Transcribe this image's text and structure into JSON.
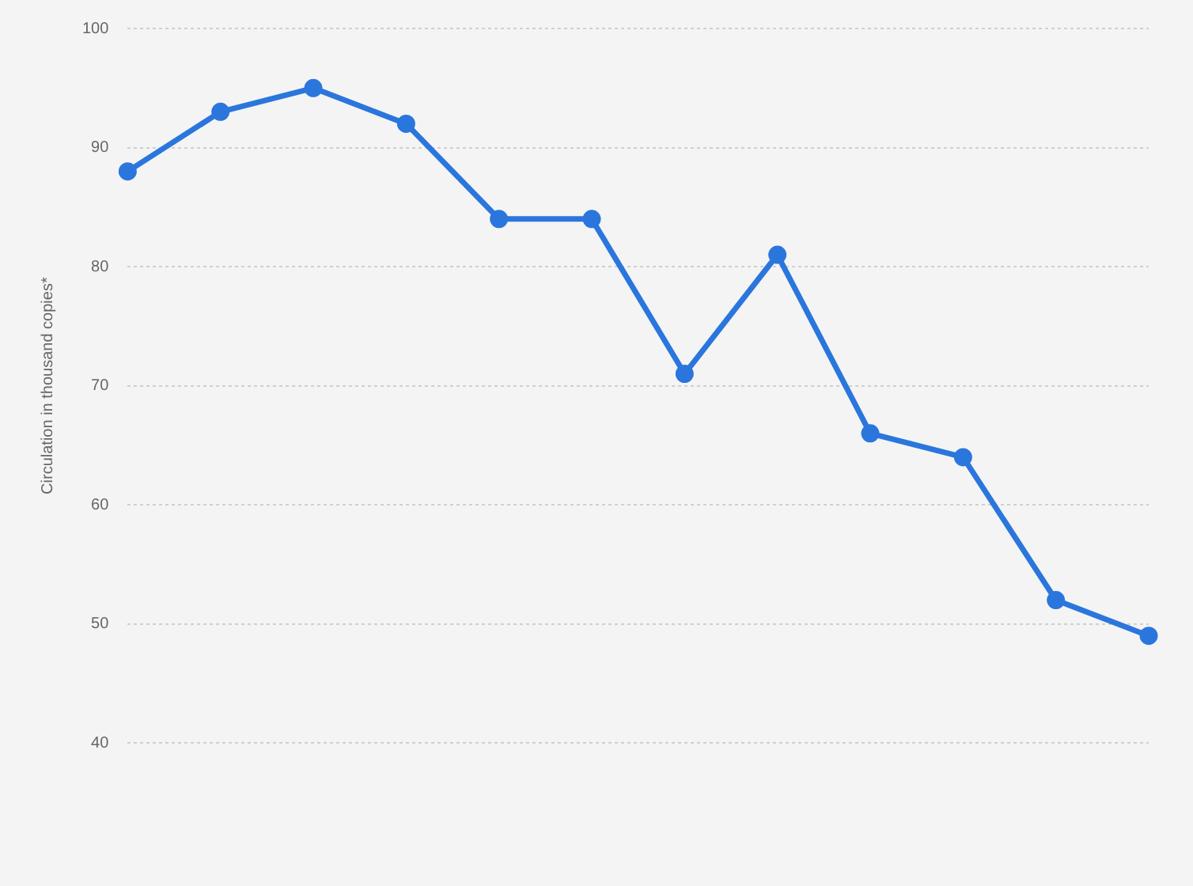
{
  "chart_data": {
    "type": "line",
    "ylabel": "Circulation in thousand copies*",
    "categories": [
      null,
      null,
      null,
      null,
      null,
      null,
      null,
      null,
      null,
      null,
      null,
      null
    ],
    "series": [
      {
        "color": "#2a76dd",
        "values": [
          88,
          93,
          95,
          92,
          84,
          84,
          71,
          81,
          66,
          64,
          52,
          49
        ]
      }
    ],
    "ylim": [
      40,
      100
    ],
    "yticks": [
      40,
      50,
      60,
      70,
      80,
      90,
      100
    ],
    "grid": "y",
    "legend": false,
    "marker": "circle",
    "line_style": "solid"
  }
}
